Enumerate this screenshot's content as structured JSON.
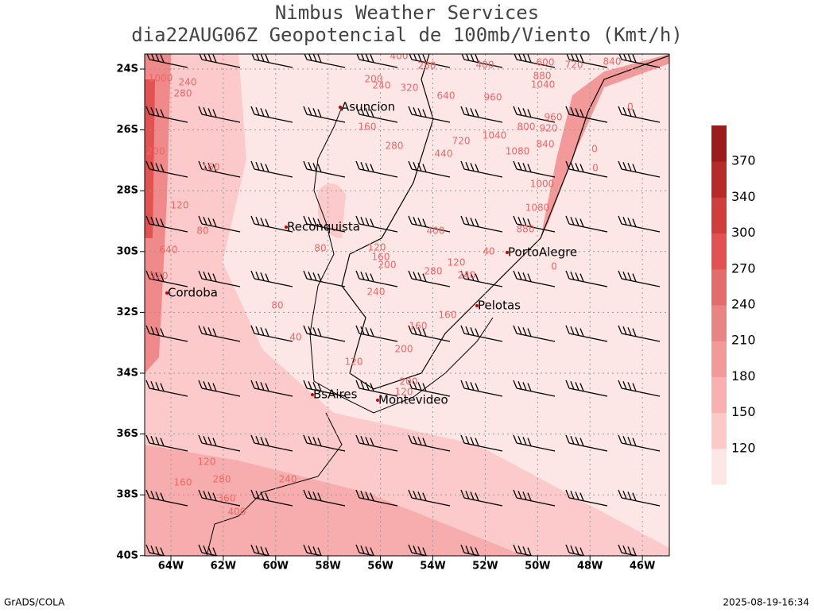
{
  "header": {
    "title": "Nimbus Weather Services",
    "subtitle": "dia22AUG06Z Geopotencial de 100mb/Viento (Kmt/h)"
  },
  "map": {
    "lat_ticks": [
      "24S",
      "26S",
      "28S",
      "30S",
      "32S",
      "34S",
      "36S",
      "38S",
      "40S"
    ],
    "lon_ticks": [
      "64W",
      "62W",
      "60W",
      "58W",
      "56W",
      "54W",
      "52W",
      "50W",
      "48W",
      "46W"
    ],
    "cities": [
      "Asuncion",
      "Reconquista",
      "PortoAlegre",
      "Cordoba",
      "Pelotas",
      "BsAires",
      "Montevideo"
    ]
  },
  "contours": {
    "labels": [
      1000,
      240,
      280,
      200,
      160,
      120,
      80,
      640,
      920,
      80,
      80,
      40,
      400,
      240,
      200,
      320,
      640,
      280,
      400,
      960,
      600,
      720,
      840,
      880,
      1040,
      160,
      280,
      720,
      1040,
      1080,
      800,
      920,
      960,
      840,
      440,
      1000,
      1080,
      880,
      400,
      120,
      160,
      200,
      120,
      40,
      240,
      280,
      240,
      160,
      160,
      200,
      120,
      200,
      120,
      240,
      120,
      160,
      280,
      360,
      400,
      0,
      0,
      0,
      0
    ]
  },
  "colorbar": {
    "ticks": [
      120,
      150,
      180,
      210,
      240,
      270,
      300,
      340,
      370
    ],
    "colors": [
      "#fde6e6",
      "#fcc9c9",
      "#f9b0b0",
      "#f29a9a",
      "#e98484",
      "#e36d6d",
      "#e25252",
      "#cf3d3d",
      "#b72a2a",
      "#9a1c1c"
    ]
  },
  "footer": {
    "left": "GrADS/COLA",
    "right": "2025-08-19-16:34"
  }
}
